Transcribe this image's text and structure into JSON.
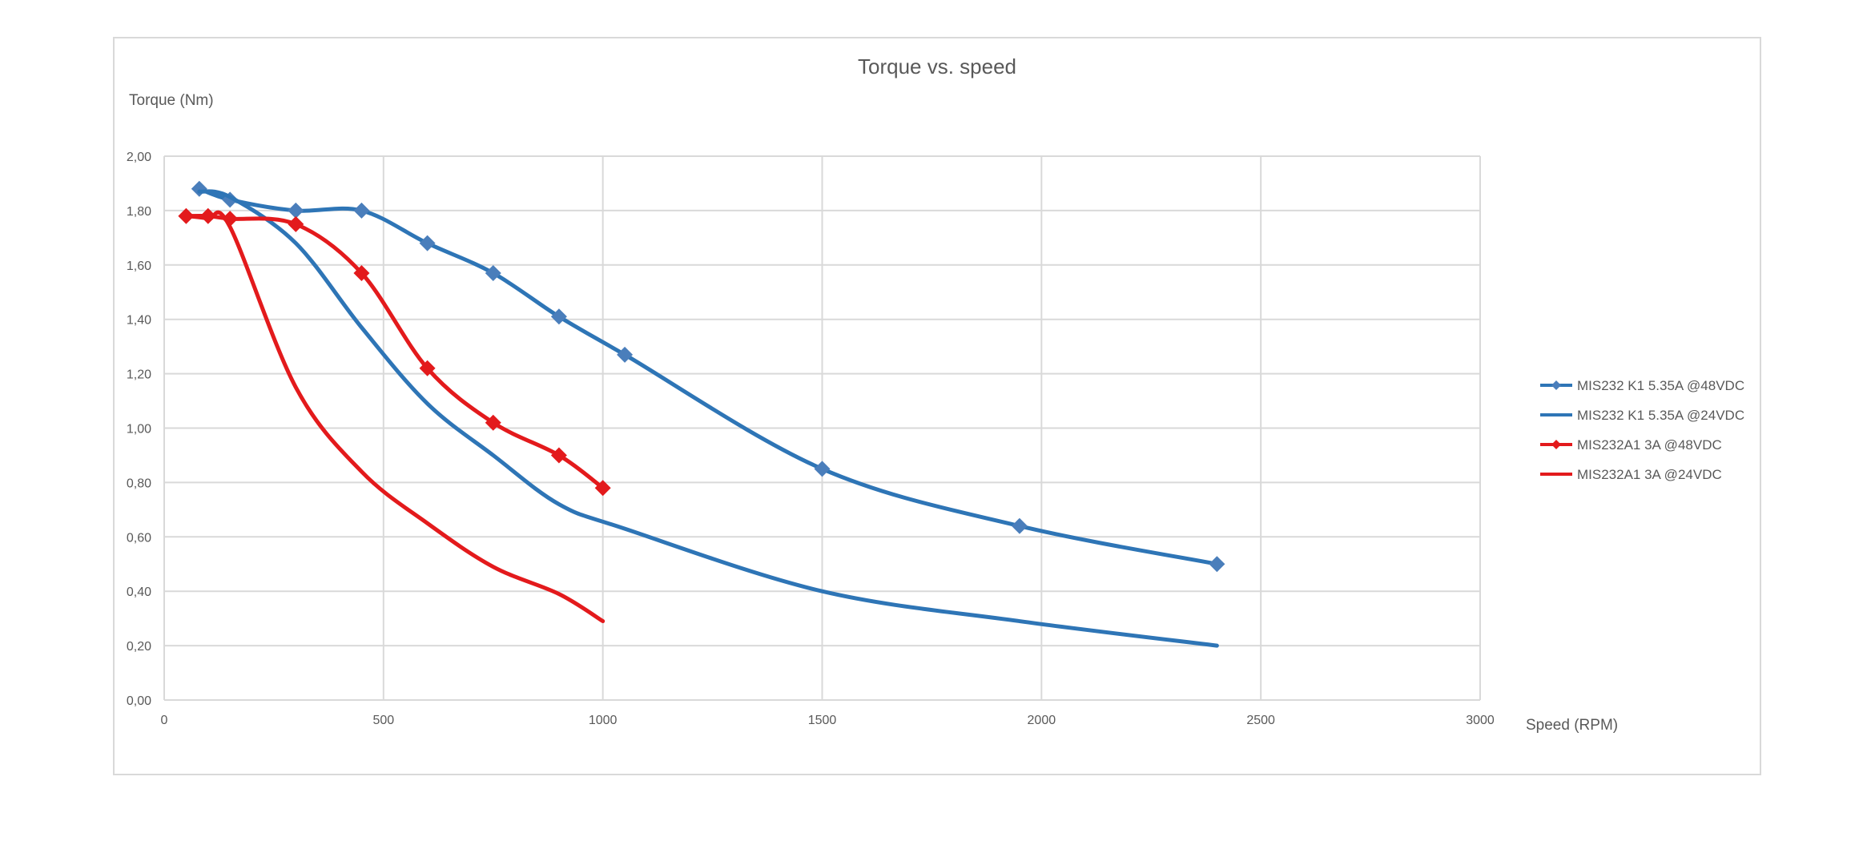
{
  "chart_data": {
    "type": "line",
    "title": "Torque vs. speed",
    "xlabel": "Speed (RPM)",
    "ylabel": "Torque (Nm)",
    "xlim": [
      0,
      3000
    ],
    "ylim": [
      0,
      2.0
    ],
    "x_ticks": [
      0,
      500,
      1000,
      1500,
      2000,
      2500,
      3000
    ],
    "x_tick_labels": [
      "0",
      "500",
      "1000",
      "1500",
      "2000",
      "2500",
      "3000"
    ],
    "y_ticks": [
      0,
      0.2,
      0.4,
      0.6,
      0.8,
      1.0,
      1.2,
      1.4,
      1.6,
      1.8,
      2.0
    ],
    "y_tick_labels": [
      "0,00",
      "0,20",
      "0,40",
      "0,60",
      "0,80",
      "1,00",
      "1,20",
      "1,40",
      "1,60",
      "1,80",
      "2,00"
    ],
    "grid": true,
    "legend_position": "right",
    "series": [
      {
        "name": "MIS232 K1 5.35A @48VDC",
        "color": "#2e75b6",
        "marker": "diamond",
        "points": [
          [
            80,
            1.88
          ],
          [
            150,
            1.84
          ],
          [
            300,
            1.8
          ],
          [
            450,
            1.8
          ],
          [
            600,
            1.68
          ],
          [
            750,
            1.57
          ],
          [
            900,
            1.41
          ],
          [
            1050,
            1.27
          ],
          [
            1500,
            0.85
          ],
          [
            1950,
            0.64
          ],
          [
            2400,
            0.5
          ]
        ]
      },
      {
        "name": "MIS232 K1 5.35A @24VDC",
        "color": "#2e75b6",
        "marker": "none",
        "points": [
          [
            80,
            1.87
          ],
          [
            150,
            1.85
          ],
          [
            300,
            1.68
          ],
          [
            450,
            1.37
          ],
          [
            600,
            1.09
          ],
          [
            750,
            0.9
          ],
          [
            900,
            0.72
          ],
          [
            1050,
            0.63
          ],
          [
            1500,
            0.4
          ],
          [
            1950,
            0.29
          ],
          [
            2400,
            0.2
          ]
        ]
      },
      {
        "name": "MIS232A1 3A @48VDC",
        "color": "#e31a1c",
        "marker": "diamond",
        "points": [
          [
            50,
            1.78
          ],
          [
            100,
            1.78
          ],
          [
            150,
            1.77
          ],
          [
            300,
            1.75
          ],
          [
            450,
            1.57
          ],
          [
            600,
            1.22
          ],
          [
            750,
            1.02
          ],
          [
            900,
            0.9
          ],
          [
            1000,
            0.78
          ]
        ]
      },
      {
        "name": "MIS232A1 3A @24VDC",
        "color": "#e31a1c",
        "marker": "none",
        "points": [
          [
            50,
            1.78
          ],
          [
            100,
            1.77
          ],
          [
            150,
            1.74
          ],
          [
            300,
            1.15
          ],
          [
            450,
            0.84
          ],
          [
            600,
            0.65
          ],
          [
            750,
            0.49
          ],
          [
            900,
            0.39
          ],
          [
            1000,
            0.29
          ]
        ]
      }
    ]
  }
}
